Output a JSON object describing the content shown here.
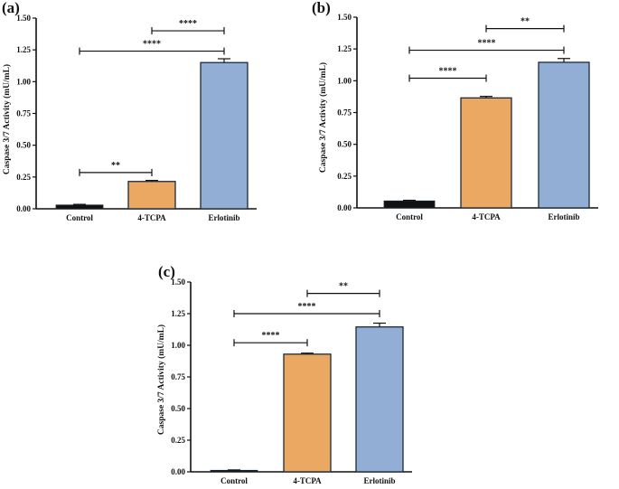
{
  "chart_data": [
    {
      "type": "bar",
      "panel": "(a)",
      "categories": [
        "Control",
        "4-TCPA",
        "Erlotinib"
      ],
      "values": [
        0.03,
        0.215,
        1.15
      ],
      "errors": [
        0.005,
        0.008,
        0.03
      ],
      "colors": [
        "#111111",
        "#EBA863",
        "#93AED4"
      ],
      "ylabel": "Caspase 3/7 Activity (mU/mL)",
      "ylim": [
        0,
        1.5
      ],
      "yticks": [
        "0.00",
        "0.25",
        "0.50",
        "0.75",
        "1.00",
        "1.25",
        "1.50"
      ],
      "significance": [
        {
          "from": 0,
          "to": 1,
          "label": "**",
          "y": 0.285
        },
        {
          "from": 0,
          "to": 2,
          "label": "****",
          "y": 1.24
        },
        {
          "from": 1,
          "to": 2,
          "label": "****",
          "y": 1.4
        }
      ]
    },
    {
      "type": "bar",
      "panel": "(b)",
      "categories": [
        "Control",
        "4-TCPA",
        "Erlotinib"
      ],
      "values": [
        0.055,
        0.865,
        1.145
      ],
      "errors": [
        0.005,
        0.012,
        0.03
      ],
      "colors": [
        "#111111",
        "#EBA863",
        "#93AED4"
      ],
      "ylabel": "Caspase 3/7 Activity (mU/mL)",
      "ylim": [
        0,
        1.5
      ],
      "yticks": [
        "0.00",
        "0.25",
        "0.50",
        "0.75",
        "1.00",
        "1.25",
        "1.50"
      ],
      "significance": [
        {
          "from": 0,
          "to": 1,
          "label": "****",
          "y": 1.02
        },
        {
          "from": 0,
          "to": 2,
          "label": "****",
          "y": 1.24
        },
        {
          "from": 1,
          "to": 2,
          "label": "**",
          "y": 1.41
        }
      ]
    },
    {
      "type": "bar",
      "panel": "(c)",
      "categories": [
        "Control",
        "4-TCPA",
        "Erlotinib"
      ],
      "values": [
        0.012,
        0.93,
        1.145
      ],
      "errors": [
        0.003,
        0.008,
        0.03
      ],
      "colors": [
        "#111111",
        "#EBA863",
        "#93AED4"
      ],
      "ylabel": "Caspase 3/7 Activity (mU/mL)",
      "ylim": [
        0,
        1.5
      ],
      "yticks": [
        "0.00",
        "0.25",
        "0.50",
        "0.75",
        "1.00",
        "1.25",
        "1.50"
      ],
      "significance": [
        {
          "from": 0,
          "to": 1,
          "label": "****",
          "y": 1.02
        },
        {
          "from": 0,
          "to": 2,
          "label": "****",
          "y": 1.25
        },
        {
          "from": 1,
          "to": 2,
          "label": "**",
          "y": 1.41
        }
      ]
    }
  ]
}
